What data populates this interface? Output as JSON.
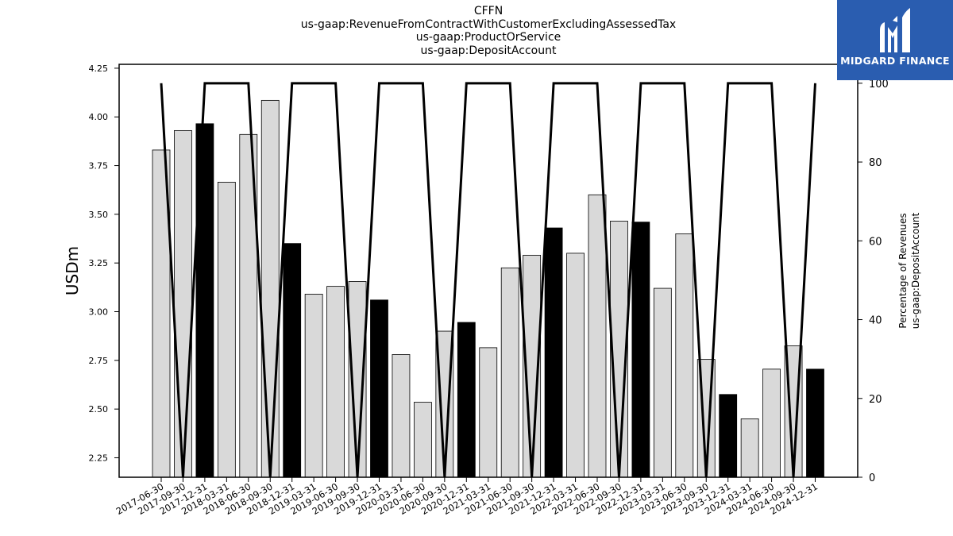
{
  "titles": {
    "line1": "CFFN",
    "line2": "us-gaap:RevenueFromContractWithCustomerExcludingAssessedTax",
    "line3": "us-gaap:ProductOrService",
    "line4": "us-gaap:DepositAccount"
  },
  "logo": {
    "text": "MIDGARD FINANCE",
    "icon": "midgard-logo-icon",
    "background": "#2a5db0"
  },
  "chart_data": {
    "type": "bar",
    "ylabel": "USDm",
    "y2label_line1": "Percentage of Revenues",
    "y2label_line2": "us-gaap:DepositAccount",
    "ylim": [
      2.15,
      4.27
    ],
    "y2lim": [
      0,
      104.8
    ],
    "yticks": [
      "2.25",
      "2.50",
      "2.75",
      "3.00",
      "3.25",
      "3.50",
      "3.75",
      "4.00",
      "4.25"
    ],
    "y2ticks": [
      "0",
      "20",
      "40",
      "60",
      "80",
      "100"
    ],
    "grid": false,
    "colors": {
      "quarter_bar": "#d9d9d9",
      "annual_bar": "#000000",
      "line": "#000000"
    },
    "categories": [
      "2017-06-30",
      "2017-09-30",
      "2017-12-31",
      "2018-03-31",
      "2018-06-30",
      "2018-09-30",
      "2018-12-31",
      "2019-03-31",
      "2019-06-30",
      "2019-09-30",
      "2019-12-31",
      "2020-03-31",
      "2020-06-30",
      "2020-09-30",
      "2020-12-31",
      "2021-03-31",
      "2021-06-30",
      "2021-09-30",
      "2021-12-31",
      "2022-03-31",
      "2022-06-30",
      "2022-09-30",
      "2022-12-31",
      "2023-03-31",
      "2023-06-30",
      "2023-09-30",
      "2023-12-31",
      "2024-03-31",
      "2024-06-30",
      "2024-09-30",
      "2024-12-31"
    ],
    "series": [
      {
        "kind": "bar",
        "values": [
          3.83,
          3.93,
          3.965,
          3.665,
          3.91,
          4.085,
          3.35,
          3.09,
          3.13,
          3.155,
          3.06,
          2.78,
          2.535,
          2.9,
          2.945,
          2.815,
          3.225,
          3.29,
          3.43,
          3.3,
          3.6,
          3.465,
          3.46,
          3.12,
          3.4,
          2.755,
          2.575,
          2.45,
          2.705,
          2.825,
          2.705
        ],
        "highlight": [
          false,
          false,
          true,
          false,
          false,
          false,
          true,
          false,
          false,
          false,
          true,
          false,
          false,
          false,
          true,
          false,
          false,
          false,
          true,
          false,
          false,
          false,
          true,
          false,
          false,
          false,
          true,
          false,
          false,
          false,
          true
        ]
      },
      {
        "kind": "line",
        "axis": "right",
        "values": [
          100,
          0,
          100,
          100,
          100,
          0,
          100,
          100,
          100,
          0,
          100,
          100,
          100,
          0,
          100,
          100,
          100,
          0,
          100,
          100,
          100,
          0,
          100,
          100,
          100,
          0,
          100,
          100,
          100,
          0,
          100
        ]
      }
    ]
  }
}
